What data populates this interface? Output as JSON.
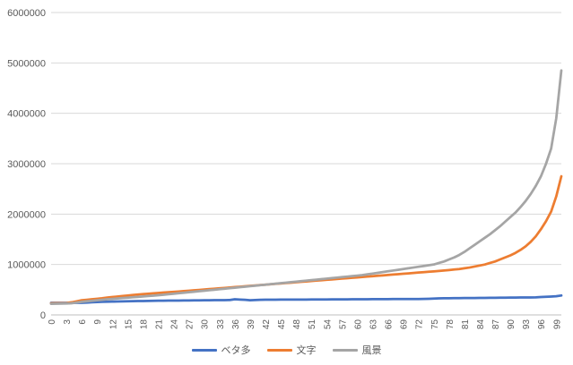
{
  "chart_data": {
    "type": "line",
    "title": "",
    "xlabel": "",
    "ylabel": "",
    "ylim": [
      0,
      6000000
    ],
    "yticks": [
      "0",
      "1000000",
      "2000000",
      "3000000",
      "4000000",
      "5000000",
      "6000000"
    ],
    "grid": true,
    "legend_position": "bottom",
    "x": [
      0,
      1,
      2,
      3,
      4,
      5,
      6,
      7,
      8,
      9,
      10,
      11,
      12,
      13,
      14,
      15,
      16,
      17,
      18,
      19,
      20,
      21,
      22,
      23,
      24,
      25,
      26,
      27,
      28,
      29,
      30,
      31,
      32,
      33,
      34,
      35,
      36,
      37,
      38,
      39,
      40,
      41,
      42,
      43,
      44,
      45,
      46,
      47,
      48,
      49,
      50,
      51,
      52,
      53,
      54,
      55,
      56,
      57,
      58,
      59,
      60,
      61,
      62,
      63,
      64,
      65,
      66,
      67,
      68,
      69,
      70,
      71,
      72,
      73,
      74,
      75,
      76,
      77,
      78,
      79,
      80,
      81,
      82,
      83,
      84,
      85,
      86,
      87,
      88,
      89,
      90,
      91,
      92,
      93,
      94,
      95,
      96,
      97,
      98,
      99,
      100
    ],
    "xtick_labels": [
      "0",
      "3",
      "6",
      "9",
      "12",
      "15",
      "18",
      "21",
      "24",
      "27",
      "30",
      "33",
      "36",
      "39",
      "42",
      "45",
      "48",
      "51",
      "54",
      "57",
      "60",
      "63",
      "66",
      "69",
      "72",
      "75",
      "78",
      "81",
      "84",
      "87",
      "90",
      "93",
      "96",
      "99"
    ],
    "series": [
      {
        "name": "ベタ多",
        "color": "#4472c4",
        "values": [
          240000,
          240000,
          240000,
          240000,
          240000,
          240000,
          240000,
          245000,
          250000,
          255000,
          260000,
          262000,
          264000,
          266000,
          268000,
          270000,
          272000,
          274000,
          276000,
          278000,
          280000,
          281000,
          282000,
          283000,
          284000,
          285000,
          286000,
          287000,
          288000,
          289000,
          290000,
          291000,
          292000,
          293000,
          294000,
          295000,
          310000,
          305000,
          300000,
          290000,
          295000,
          300000,
          301000,
          302000,
          302000,
          303000,
          303000,
          304000,
          304000,
          305000,
          305000,
          306000,
          306000,
          307000,
          307000,
          308000,
          308000,
          309000,
          309000,
          310000,
          310000,
          311000,
          311000,
          312000,
          312000,
          313000,
          313000,
          314000,
          314000,
          315000,
          315000,
          316000,
          316000,
          317000,
          320000,
          325000,
          328000,
          330000,
          331000,
          332000,
          333000,
          334000,
          335000,
          336000,
          337000,
          338000,
          339000,
          340000,
          341000,
          342000,
          343000,
          344000,
          345000,
          346000,
          347000,
          348000,
          355000,
          360000,
          365000,
          370000,
          385000
        ]
      },
      {
        "name": "文字",
        "color": "#ed7d31",
        "values": [
          230000,
          232000,
          234000,
          236000,
          250000,
          270000,
          290000,
          300000,
          310000,
          320000,
          330000,
          345000,
          355000,
          365000,
          375000,
          385000,
          395000,
          405000,
          412000,
          420000,
          428000,
          435000,
          443000,
          450000,
          458000,
          465000,
          472000,
          480000,
          488000,
          496000,
          504000,
          512000,
          520000,
          528000,
          536000,
          544000,
          552000,
          560000,
          568000,
          576000,
          584000,
          592000,
          600000,
          608000,
          616000,
          624000,
          632000,
          640000,
          648000,
          656000,
          664000,
          672000,
          680000,
          688000,
          696000,
          704000,
          712000,
          720000,
          728000,
          736000,
          744000,
          752000,
          760000,
          768000,
          776000,
          784000,
          792000,
          800000,
          808000,
          816000,
          824000,
          832000,
          840000,
          848000,
          856000,
          864000,
          872000,
          880000,
          890000,
          900000,
          910000,
          925000,
          940000,
          960000,
          980000,
          1000000,
          1030000,
          1060000,
          1100000,
          1140000,
          1180000,
          1230000,
          1290000,
          1360000,
          1450000,
          1560000,
          1700000,
          1860000,
          2050000,
          2350000,
          2750000
        ]
      },
      {
        "name": "風景",
        "color": "#a5a5a5",
        "values": [
          220000,
          222000,
          224000,
          226000,
          230000,
          245000,
          260000,
          270000,
          280000,
          290000,
          300000,
          310000,
          318000,
          326000,
          334000,
          342000,
          350000,
          358000,
          366000,
          374000,
          382000,
          390000,
          400000,
          410000,
          420000,
          430000,
          440000,
          450000,
          460000,
          470000,
          480000,
          490000,
          500000,
          510000,
          520000,
          530000,
          540000,
          550000,
          560000,
          570000,
          580000,
          590000,
          600000,
          610000,
          620000,
          630000,
          640000,
          650000,
          660000,
          670000,
          680000,
          690000,
          700000,
          710000,
          720000,
          730000,
          740000,
          750000,
          760000,
          770000,
          780000,
          790000,
          805000,
          820000,
          835000,
          850000,
          865000,
          880000,
          895000,
          910000,
          925000,
          940000,
          955000,
          970000,
          985000,
          1000000,
          1030000,
          1060000,
          1100000,
          1140000,
          1190000,
          1250000,
          1320000,
          1390000,
          1460000,
          1530000,
          1600000,
          1680000,
          1760000,
          1850000,
          1940000,
          2030000,
          2140000,
          2260000,
          2400000,
          2560000,
          2750000,
          3000000,
          3300000,
          3900000,
          4850000
        ]
      }
    ]
  }
}
